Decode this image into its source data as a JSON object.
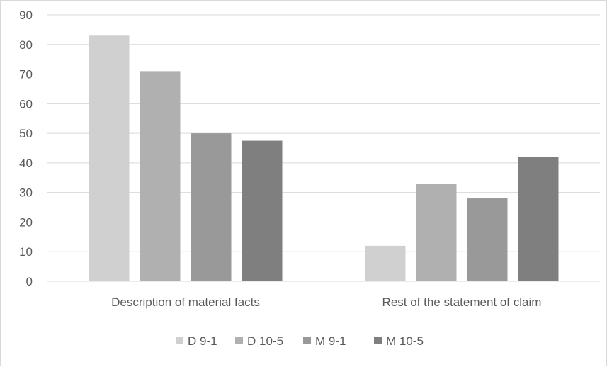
{
  "chart_data": {
    "type": "bar",
    "categories": [
      "Description of material facts",
      "Rest of the statement of claim"
    ],
    "series": [
      {
        "name": "D 9-1",
        "values": [
          83,
          12
        ],
        "color": "#d0d0d0"
      },
      {
        "name": "D 10-5",
        "values": [
          71,
          33
        ],
        "color": "#b0b0b0"
      },
      {
        "name": "M 9-1",
        "values": [
          50,
          28
        ],
        "color": "#999999"
      },
      {
        "name": "M 10-5",
        "values": [
          47.5,
          42
        ],
        "color": "#7f7f7f"
      }
    ],
    "y_ticks": [
      "0",
      "10",
      "20",
      "30",
      "40",
      "50",
      "60",
      "70",
      "80",
      "90"
    ],
    "ylim": [
      0,
      90
    ],
    "grid": true,
    "legend_position": "bottom",
    "title": "",
    "xlabel": "",
    "ylabel": ""
  }
}
